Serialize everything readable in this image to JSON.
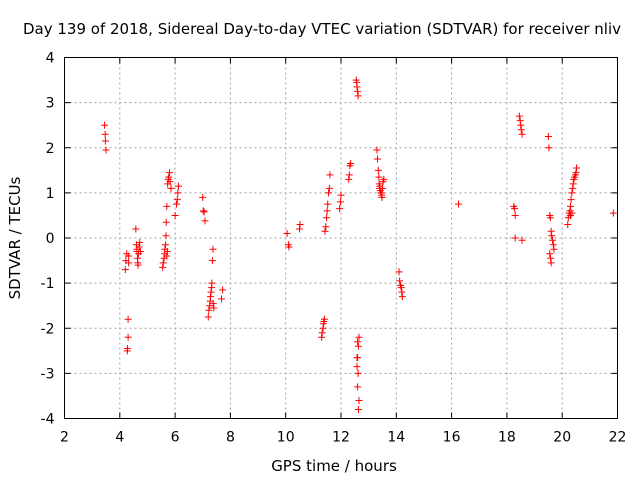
{
  "chart_data": {
    "type": "scatter",
    "title": "Day 139 of 2018, Sidereal Day-to-day VTEC variation (SDTVAR) for receiver nliv",
    "xlabel": "GPS time / hours",
    "ylabel": "SDTVAR / TECUs",
    "xlim": [
      2,
      22
    ],
    "ylim": [
      -4,
      4
    ],
    "xticks": [
      "2",
      "4",
      "6",
      "8",
      "10",
      "12",
      "14",
      "16",
      "18",
      "20",
      "22"
    ],
    "yticks": [
      "-4",
      "-3",
      "-2",
      "-1",
      "0",
      "1",
      "2",
      "3",
      "4"
    ],
    "grid": true,
    "marker": "+",
    "color": "#ff0000",
    "series": [
      {
        "name": "SDTVAR",
        "x": [
          3.45,
          3.47,
          3.48,
          3.5,
          4.2,
          4.22,
          4.25,
          4.27,
          4.28,
          4.3,
          4.3,
          4.32,
          4.32,
          4.58,
          4.6,
          4.62,
          4.62,
          4.64,
          4.65,
          4.66,
          4.68,
          4.7,
          4.72,
          4.75,
          5.55,
          5.57,
          5.6,
          5.62,
          5.63,
          5.65,
          5.67,
          5.68,
          5.7,
          5.7,
          5.72,
          5.73,
          5.75,
          5.77,
          5.8,
          5.82,
          5.85,
          6.0,
          6.05,
          6.08,
          6.1,
          6.12,
          7.0,
          7.02,
          7.05,
          7.08,
          7.2,
          7.22,
          7.25,
          7.27,
          7.28,
          7.3,
          7.32,
          7.33,
          7.35,
          7.37,
          7.38,
          7.4,
          7.68,
          7.72,
          10.05,
          10.1,
          10.12,
          10.5,
          10.52,
          11.3,
          11.32,
          11.35,
          11.37,
          11.38,
          11.4,
          11.42,
          11.45,
          11.48,
          11.5,
          11.52,
          11.55,
          11.58,
          11.6,
          11.95,
          11.98,
          12.0,
          12.28,
          12.3,
          12.32,
          12.35,
          12.55,
          12.57,
          12.58,
          12.6,
          12.62,
          12.63,
          12.65,
          12.6,
          12.62,
          12.58,
          12.6,
          12.63,
          12.65,
          12.6,
          12.58,
          13.3,
          13.32,
          13.35,
          13.37,
          13.38,
          13.4,
          13.42,
          13.45,
          13.47,
          13.48,
          13.5,
          13.52,
          13.55,
          13.4,
          13.45,
          14.1,
          14.12,
          14.15,
          14.18,
          14.2,
          14.22,
          16.25,
          18.25,
          18.28,
          18.3,
          18.3,
          18.45,
          18.48,
          18.5,
          18.52,
          18.55,
          18.55,
          19.5,
          19.52,
          19.55,
          19.57,
          19.6,
          19.62,
          19.65,
          19.68,
          19.7,
          19.55,
          19.58,
          19.6,
          20.2,
          20.22,
          20.25,
          20.28,
          20.3,
          20.32,
          20.35,
          20.38,
          20.4,
          20.42,
          20.45,
          20.48,
          20.5,
          20.52,
          20.3,
          20.35,
          21.85
        ],
        "y": [
          2.5,
          2.3,
          2.15,
          1.95,
          -0.7,
          -0.5,
          -0.35,
          -2.5,
          -2.45,
          -2.2,
          -1.8,
          -0.55,
          -0.4,
          0.2,
          -0.15,
          -0.25,
          -0.3,
          -0.45,
          -0.55,
          -0.6,
          -0.35,
          -0.2,
          -0.1,
          -0.3,
          -0.65,
          -0.55,
          -0.45,
          -0.35,
          -0.25,
          -0.15,
          0.05,
          0.35,
          0.7,
          -0.4,
          -0.3,
          1.2,
          1.3,
          1.35,
          1.45,
          1.25,
          1.1,
          0.5,
          0.75,
          0.85,
          1.0,
          1.15,
          0.9,
          0.6,
          0.58,
          0.38,
          -1.75,
          -1.6,
          -1.5,
          -1.4,
          -1.3,
          -1.2,
          -1.1,
          -1.0,
          -0.5,
          -0.25,
          -1.45,
          -1.55,
          -1.35,
          -1.15,
          0.1,
          -0.15,
          -0.2,
          0.2,
          0.3,
          -2.2,
          -2.1,
          -2.0,
          -1.9,
          -1.85,
          -1.8,
          0.15,
          0.25,
          0.45,
          0.6,
          0.75,
          1.0,
          1.1,
          1.4,
          0.65,
          0.8,
          0.95,
          1.3,
          1.4,
          1.6,
          1.65,
          3.5,
          3.45,
          3.35,
          3.25,
          3.15,
          -3.8,
          -3.6,
          -3.3,
          -3.0,
          -2.85,
          -2.65,
          -2.4,
          -2.2,
          -2.3,
          -2.65,
          1.95,
          1.75,
          1.5,
          1.35,
          1.2,
          1.1,
          1.05,
          1.0,
          0.95,
          0.9,
          1.1,
          1.25,
          1.3,
          1.15,
          1.0,
          -0.75,
          -0.95,
          -1.05,
          -1.1,
          -1.2,
          -1.3,
          0.75,
          0.7,
          0.65,
          0.5,
          0.0,
          2.7,
          2.6,
          2.5,
          2.4,
          2.3,
          -0.05,
          2.25,
          2.0,
          0.5,
          0.45,
          0.15,
          0.05,
          -0.05,
          -0.15,
          -0.25,
          -0.35,
          -0.45,
          -0.55,
          0.3,
          0.45,
          0.55,
          0.6,
          0.7,
          0.85,
          1.0,
          1.1,
          1.2,
          1.3,
          1.35,
          1.4,
          1.45,
          1.55,
          0.5,
          0.55,
          0.55
        ]
      }
    ]
  }
}
